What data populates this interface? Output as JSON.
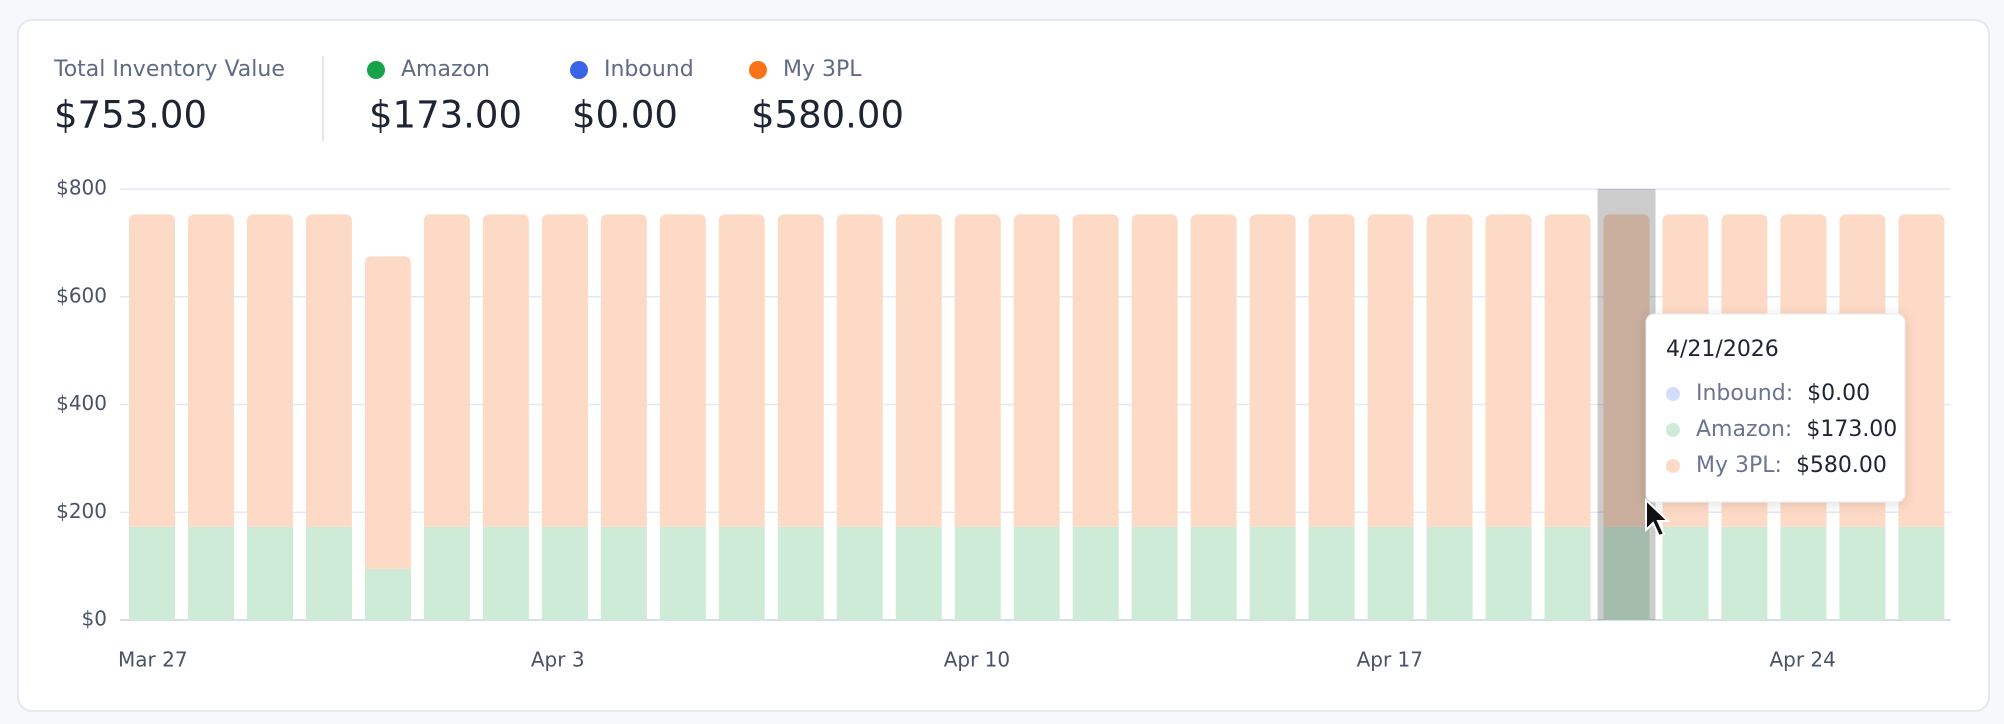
{
  "summary": [
    {
      "label": "Total Inventory Value",
      "value": "$753.00"
    },
    {
      "label": "Amazon",
      "value": "$173.00",
      "dot_color": "#16a34a"
    },
    {
      "label": "Inbound",
      "value": "$0.00",
      "dot_color": "#3b63e8"
    },
    {
      "label": "My 3PL",
      "value": "$580.00",
      "dot_color": "#f97316"
    }
  ],
  "chart_data": {
    "type": "stacked_bar",
    "categories": [
      "Mar 27",
      null,
      null,
      null,
      null,
      null,
      null,
      "Apr 3",
      null,
      null,
      null,
      null,
      null,
      null,
      "Apr 10",
      null,
      null,
      null,
      null,
      null,
      null,
      "Apr 17",
      null,
      null,
      null,
      null,
      null,
      null,
      "Apr 24",
      null,
      null
    ],
    "series": [
      {
        "name": "Inbound",
        "color": "#d3ddfa",
        "values": [
          0,
          0,
          0,
          0,
          0,
          0,
          0,
          0,
          0,
          0,
          0,
          0,
          0,
          0,
          0,
          0,
          0,
          0,
          0,
          0,
          0,
          0,
          0,
          0,
          0,
          0,
          0,
          0,
          0,
          0,
          0
        ]
      },
      {
        "name": "Amazon",
        "color": "#cdebd6",
        "values": [
          173,
          173,
          173,
          173,
          95,
          173,
          173,
          173,
          173,
          173,
          173,
          173,
          173,
          173,
          173,
          173,
          173,
          173,
          173,
          173,
          173,
          173,
          173,
          173,
          173,
          173,
          173,
          173,
          173,
          173,
          173
        ]
      },
      {
        "name": "My 3PL",
        "color": "#fddac6",
        "values": [
          580,
          580,
          580,
          580,
          580,
          580,
          580,
          580,
          580,
          580,
          580,
          580,
          580,
          580,
          580,
          580,
          580,
          580,
          580,
          580,
          580,
          580,
          580,
          580,
          580,
          580,
          580,
          580,
          580,
          580,
          580
        ]
      }
    ],
    "ylim": [
      0,
      800
    ],
    "yticks": [
      {
        "value": 0,
        "label": "$0"
      },
      {
        "value": 200,
        "label": "$200"
      },
      {
        "value": 400,
        "label": "$400"
      },
      {
        "value": 600,
        "label": "$600"
      },
      {
        "value": 800,
        "label": "$800"
      }
    ],
    "grid": true
  },
  "tooltip": {
    "title": "4/21/2026",
    "rows": [
      {
        "label": "Inbound:",
        "value": "$0.00",
        "dot_color": "#d3ddfa"
      },
      {
        "label": "Amazon:",
        "value": "$173.00",
        "dot_color": "#cdebd6"
      },
      {
        "label": "My 3PL:",
        "value": "$580.00",
        "dot_color": "#fddac6"
      }
    ]
  }
}
